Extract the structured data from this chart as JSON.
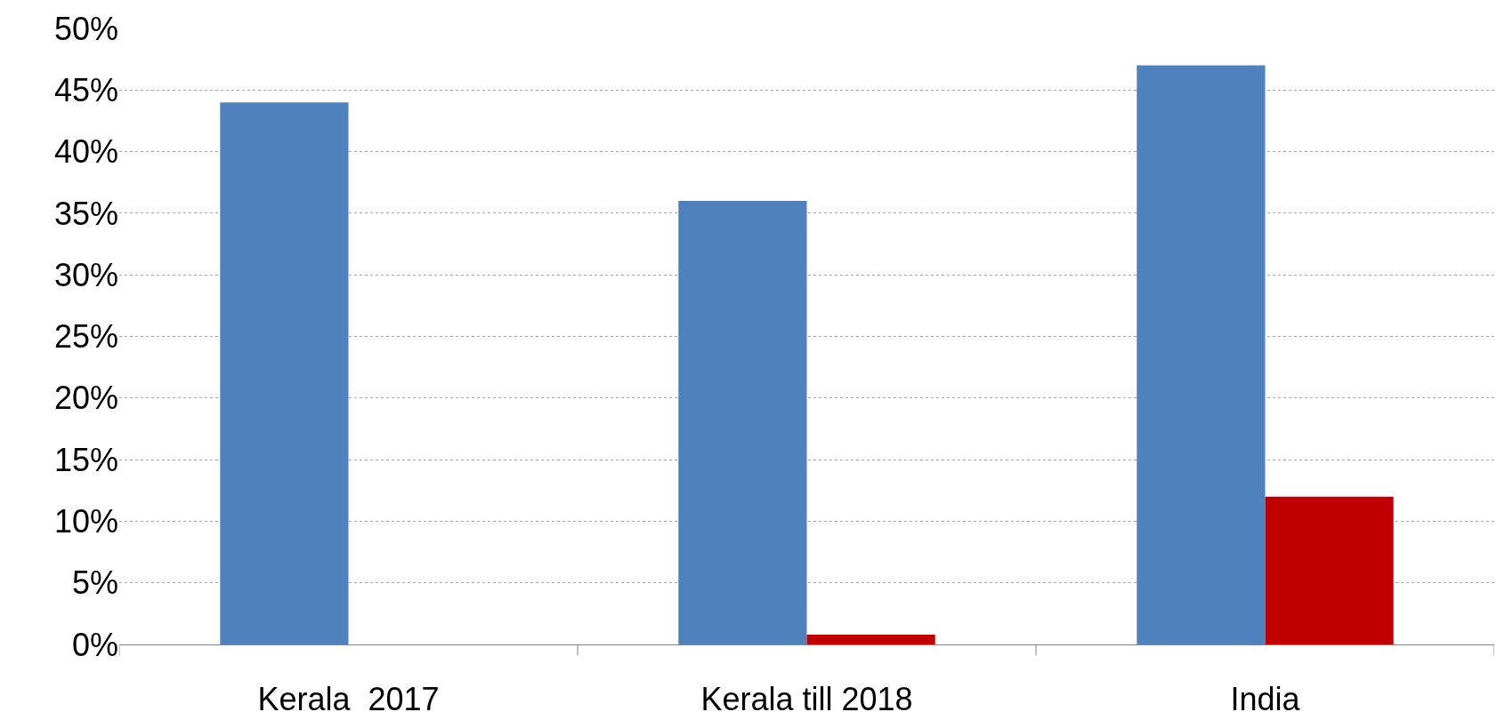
{
  "chart_data": {
    "type": "bar",
    "categories": [
      "Kerala  2017",
      "Kerala till 2018",
      "India"
    ],
    "series": [
      {
        "color": "#4f81bd",
        "values": [
          44,
          36,
          47
        ]
      },
      {
        "color": "#c00000",
        "values": [
          null,
          0.8,
          12
        ]
      }
    ],
    "ylim": [
      0,
      50
    ],
    "yticks": [
      {
        "value": 0,
        "label": "0%"
      },
      {
        "value": 5,
        "label": "5%"
      },
      {
        "value": 10,
        "label": "10%"
      },
      {
        "value": 15,
        "label": "15%"
      },
      {
        "value": 20,
        "label": "20%"
      },
      {
        "value": 25,
        "label": "25%"
      },
      {
        "value": 30,
        "label": "30%"
      },
      {
        "value": 35,
        "label": "35%"
      },
      {
        "value": 40,
        "label": "40%"
      },
      {
        "value": 45,
        "label": "45%"
      },
      {
        "value": 50,
        "label": "50%"
      }
    ],
    "grid": "y"
  }
}
